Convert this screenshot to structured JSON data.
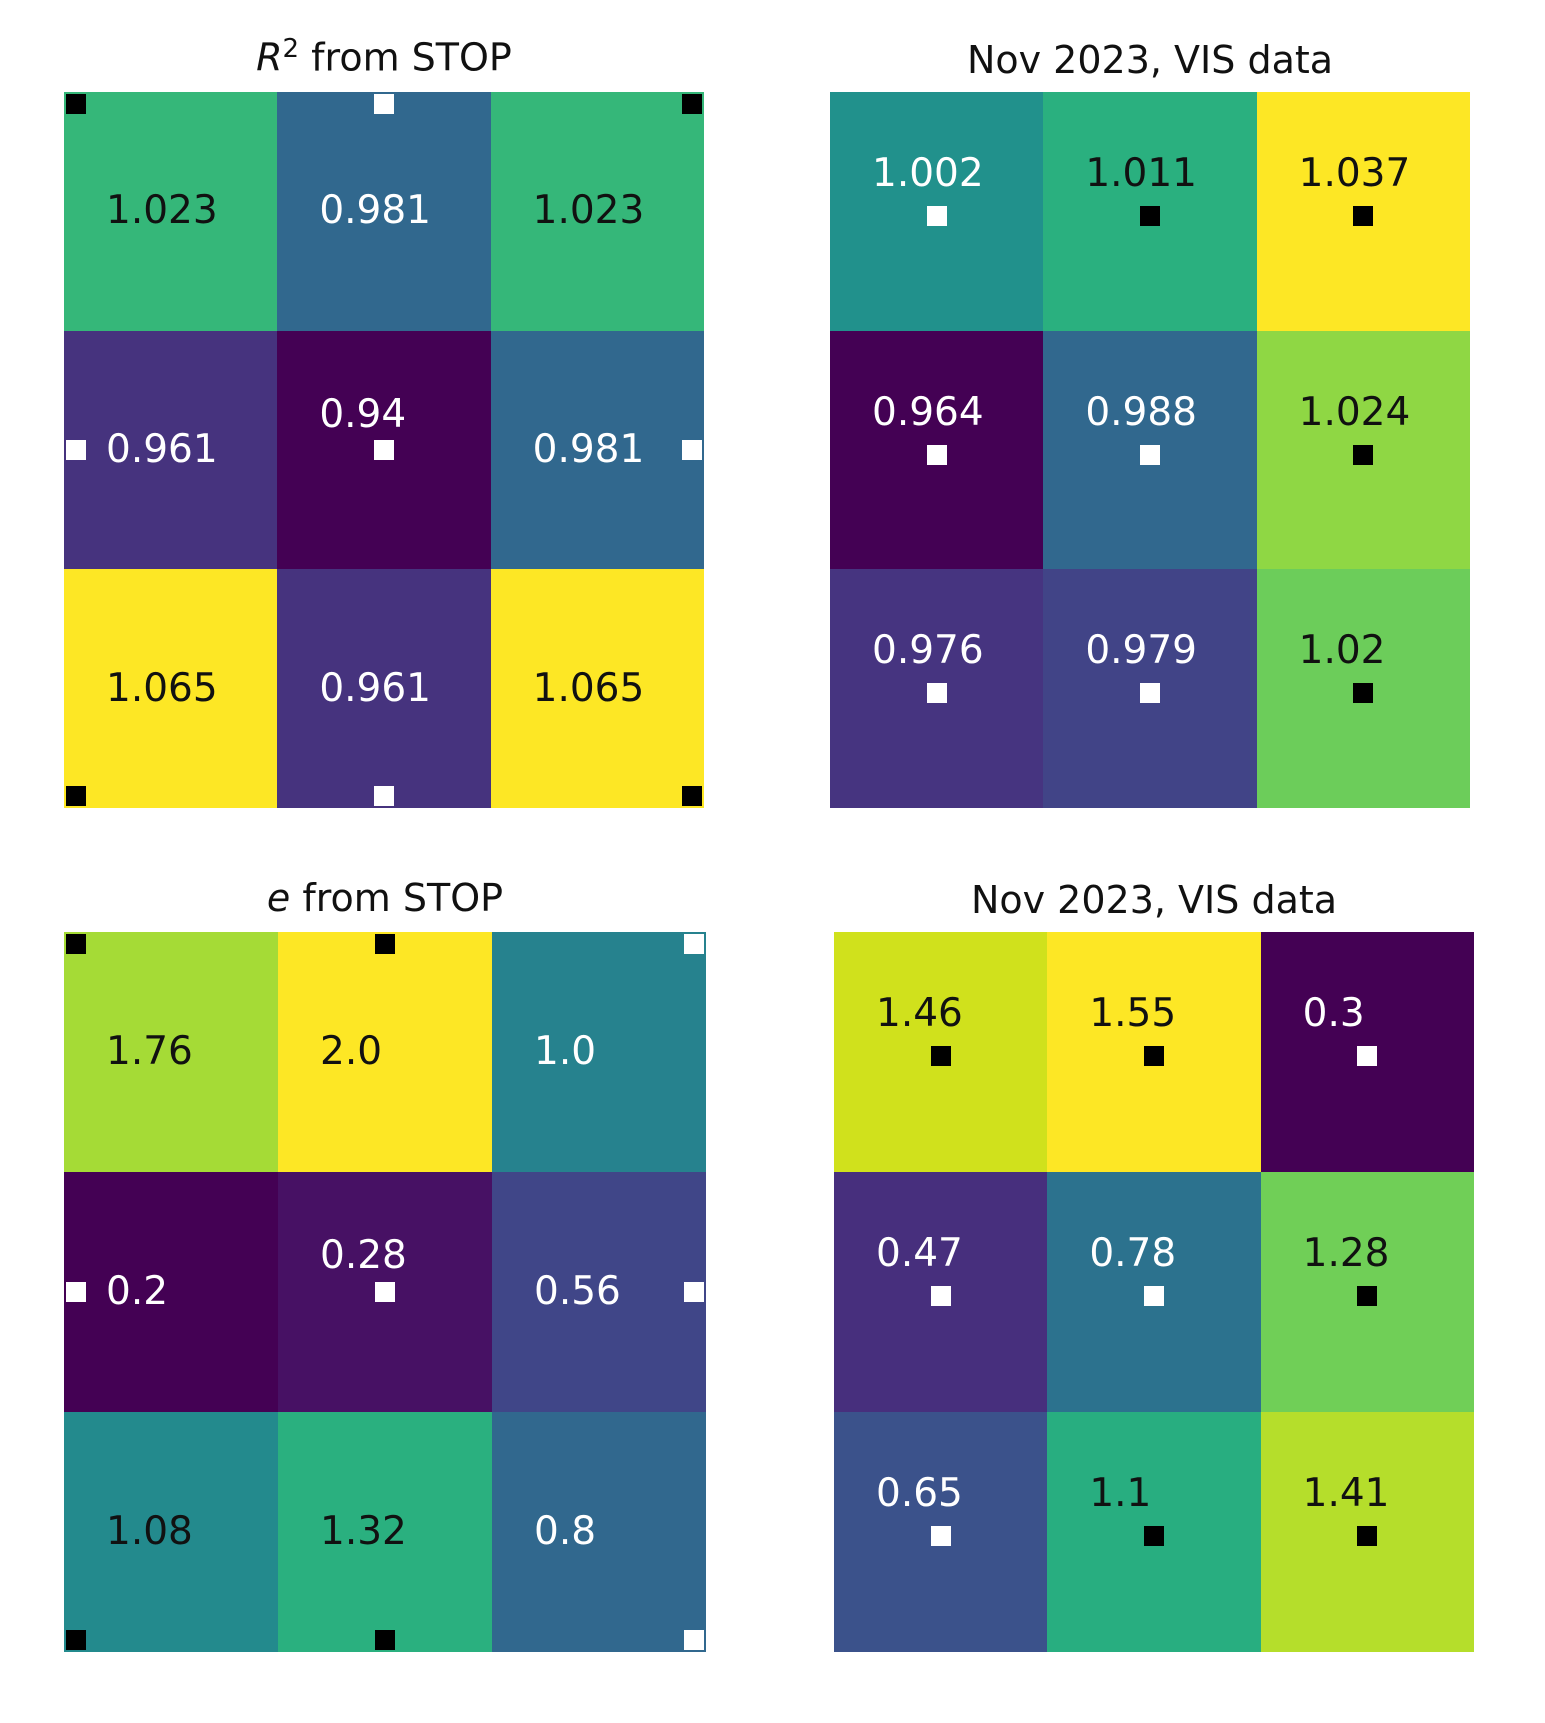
{
  "chart_data": [
    {
      "type": "heatmap",
      "panel": "top-left",
      "title_prefix": "R",
      "title_sup": "2",
      "title_rest": " from STOP",
      "rows": 3,
      "cols": 3,
      "values": [
        [
          1.023,
          0.981,
          1.023
        ],
        [
          0.961,
          0.94,
          0.981
        ],
        [
          1.065,
          0.961,
          1.065
        ]
      ],
      "labels": [
        [
          "1.023",
          "0.981",
          "1.023"
        ],
        [
          "0.961",
          "0.94",
          "0.981"
        ],
        [
          "1.065",
          "0.961",
          "1.065"
        ]
      ],
      "colors": [
        [
          "#35b779",
          "#31688e",
          "#35b779"
        ],
        [
          "#46337e",
          "#440154",
          "#31688e"
        ],
        [
          "#fde725",
          "#46337e",
          "#fde725"
        ]
      ],
      "text_colors": [
        [
          "#111111",
          "#ffffff",
          "#111111"
        ],
        [
          "#ffffff",
          "#ffffff",
          "#ffffff"
        ],
        [
          "#111111",
          "#ffffff",
          "#111111"
        ]
      ],
      "markers": [
        {
          "row": 0,
          "col": 0,
          "anchor": "top-left",
          "color": "#000000"
        },
        {
          "row": 0,
          "col": 1,
          "anchor": "top-center",
          "color": "#ffffff"
        },
        {
          "row": 0,
          "col": 2,
          "anchor": "top-right",
          "color": "#000000"
        },
        {
          "row": 1,
          "col": 0,
          "anchor": "middle-left",
          "color": "#ffffff"
        },
        {
          "row": 1,
          "col": 1,
          "anchor": "center",
          "color": "#ffffff"
        },
        {
          "row": 1,
          "col": 2,
          "anchor": "middle-right",
          "color": "#ffffff"
        },
        {
          "row": 2,
          "col": 0,
          "anchor": "bottom-left",
          "color": "#000000"
        },
        {
          "row": 2,
          "col": 1,
          "anchor": "bottom-center",
          "color": "#ffffff"
        },
        {
          "row": 2,
          "col": 2,
          "anchor": "bottom-right",
          "color": "#000000"
        }
      ]
    },
    {
      "type": "heatmap",
      "panel": "top-right",
      "title_prefix": "",
      "title_sup": "",
      "title_rest": "Nov 2023, VIS data",
      "rows": 3,
      "cols": 3,
      "values": [
        [
          1.002,
          1.011,
          1.037
        ],
        [
          0.964,
          0.988,
          1.024
        ],
        [
          0.976,
          0.979,
          1.02
        ]
      ],
      "labels": [
        [
          "1.002",
          "1.011",
          "1.037"
        ],
        [
          "0.964",
          "0.988",
          "1.024"
        ],
        [
          "0.976",
          "0.979",
          "1.02"
        ]
      ],
      "colors": [
        [
          "#21918c",
          "#2ab07f",
          "#fde725"
        ],
        [
          "#440154",
          "#31688e",
          "#8fd744"
        ],
        [
          "#463480",
          "#414487",
          "#6ccd5a"
        ]
      ],
      "text_colors": [
        [
          "#ffffff",
          "#111111",
          "#111111"
        ],
        [
          "#ffffff",
          "#ffffff",
          "#111111"
        ],
        [
          "#ffffff",
          "#ffffff",
          "#111111"
        ]
      ],
      "markers": [
        {
          "row": 0,
          "col": 0,
          "anchor": "below-text",
          "color": "#ffffff"
        },
        {
          "row": 0,
          "col": 1,
          "anchor": "below-text",
          "color": "#000000"
        },
        {
          "row": 0,
          "col": 2,
          "anchor": "below-text",
          "color": "#000000"
        },
        {
          "row": 1,
          "col": 0,
          "anchor": "below-text",
          "color": "#ffffff"
        },
        {
          "row": 1,
          "col": 1,
          "anchor": "below-text",
          "color": "#ffffff"
        },
        {
          "row": 1,
          "col": 2,
          "anchor": "below-text",
          "color": "#000000"
        },
        {
          "row": 2,
          "col": 0,
          "anchor": "below-text",
          "color": "#ffffff"
        },
        {
          "row": 2,
          "col": 1,
          "anchor": "below-text",
          "color": "#ffffff"
        },
        {
          "row": 2,
          "col": 2,
          "anchor": "below-text",
          "color": "#000000"
        }
      ]
    },
    {
      "type": "heatmap",
      "panel": "bottom-left",
      "title_prefix": "e",
      "title_sup": "",
      "title_rest": " from STOP",
      "rows": 3,
      "cols": 3,
      "values": [
        [
          1.76,
          2.0,
          1.0
        ],
        [
          0.2,
          0.28,
          0.56
        ],
        [
          1.08,
          1.32,
          0.8
        ]
      ],
      "labels": [
        [
          "1.76",
          "2.0",
          "1.0"
        ],
        [
          "0.2",
          "0.28",
          "0.56"
        ],
        [
          "1.08",
          "1.32",
          "0.8"
        ]
      ],
      "colors": [
        [
          "#a5db36",
          "#fde725",
          "#26828e"
        ],
        [
          "#440154",
          "#471164",
          "#404688"
        ],
        [
          "#238a8d",
          "#2ab07f",
          "#31688e"
        ]
      ],
      "text_colors": [
        [
          "#111111",
          "#111111",
          "#ffffff"
        ],
        [
          "#ffffff",
          "#ffffff",
          "#ffffff"
        ],
        [
          "#111111",
          "#111111",
          "#ffffff"
        ]
      ],
      "markers": [
        {
          "row": 0,
          "col": 0,
          "anchor": "top-left",
          "color": "#000000"
        },
        {
          "row": 0,
          "col": 1,
          "anchor": "top-center",
          "color": "#000000"
        },
        {
          "row": 0,
          "col": 2,
          "anchor": "top-right",
          "color": "#ffffff"
        },
        {
          "row": 1,
          "col": 0,
          "anchor": "middle-left",
          "color": "#ffffff"
        },
        {
          "row": 1,
          "col": 1,
          "anchor": "center",
          "color": "#ffffff"
        },
        {
          "row": 1,
          "col": 2,
          "anchor": "middle-right",
          "color": "#ffffff"
        },
        {
          "row": 2,
          "col": 0,
          "anchor": "bottom-left",
          "color": "#000000"
        },
        {
          "row": 2,
          "col": 1,
          "anchor": "bottom-center",
          "color": "#000000"
        },
        {
          "row": 2,
          "col": 2,
          "anchor": "bottom-right",
          "color": "#ffffff"
        }
      ]
    },
    {
      "type": "heatmap",
      "panel": "bottom-right",
      "title_prefix": "",
      "title_sup": "",
      "title_rest": "Nov 2023, VIS data",
      "rows": 3,
      "cols": 3,
      "values": [
        [
          1.46,
          1.55,
          0.3
        ],
        [
          0.47,
          0.78,
          1.28
        ],
        [
          0.65,
          1.1,
          1.41
        ]
      ],
      "labels": [
        [
          "1.46",
          "1.55",
          "0.3"
        ],
        [
          "0.47",
          "0.78",
          "1.28"
        ],
        [
          "0.65",
          "1.1",
          "1.41"
        ]
      ],
      "colors": [
        [
          "#d0e11c",
          "#fde725",
          "#440154"
        ],
        [
          "#472f7d",
          "#2c728e",
          "#70cf57"
        ],
        [
          "#3b528b",
          "#28ae80",
          "#b5de2b"
        ]
      ],
      "text_colors": [
        [
          "#111111",
          "#111111",
          "#ffffff"
        ],
        [
          "#ffffff",
          "#ffffff",
          "#111111"
        ],
        [
          "#ffffff",
          "#111111",
          "#111111"
        ]
      ],
      "markers": [
        {
          "row": 0,
          "col": 0,
          "anchor": "below-text",
          "color": "#000000"
        },
        {
          "row": 0,
          "col": 1,
          "anchor": "below-text",
          "color": "#000000"
        },
        {
          "row": 0,
          "col": 2,
          "anchor": "below-text",
          "color": "#ffffff"
        },
        {
          "row": 1,
          "col": 0,
          "anchor": "below-text",
          "color": "#ffffff"
        },
        {
          "row": 1,
          "col": 1,
          "anchor": "below-text",
          "color": "#ffffff"
        },
        {
          "row": 1,
          "col": 2,
          "anchor": "below-text",
          "color": "#000000"
        },
        {
          "row": 2,
          "col": 0,
          "anchor": "below-text",
          "color": "#ffffff"
        },
        {
          "row": 2,
          "col": 1,
          "anchor": "below-text",
          "color": "#000000"
        },
        {
          "row": 2,
          "col": 2,
          "anchor": "below-text",
          "color": "#000000"
        }
      ]
    }
  ]
}
